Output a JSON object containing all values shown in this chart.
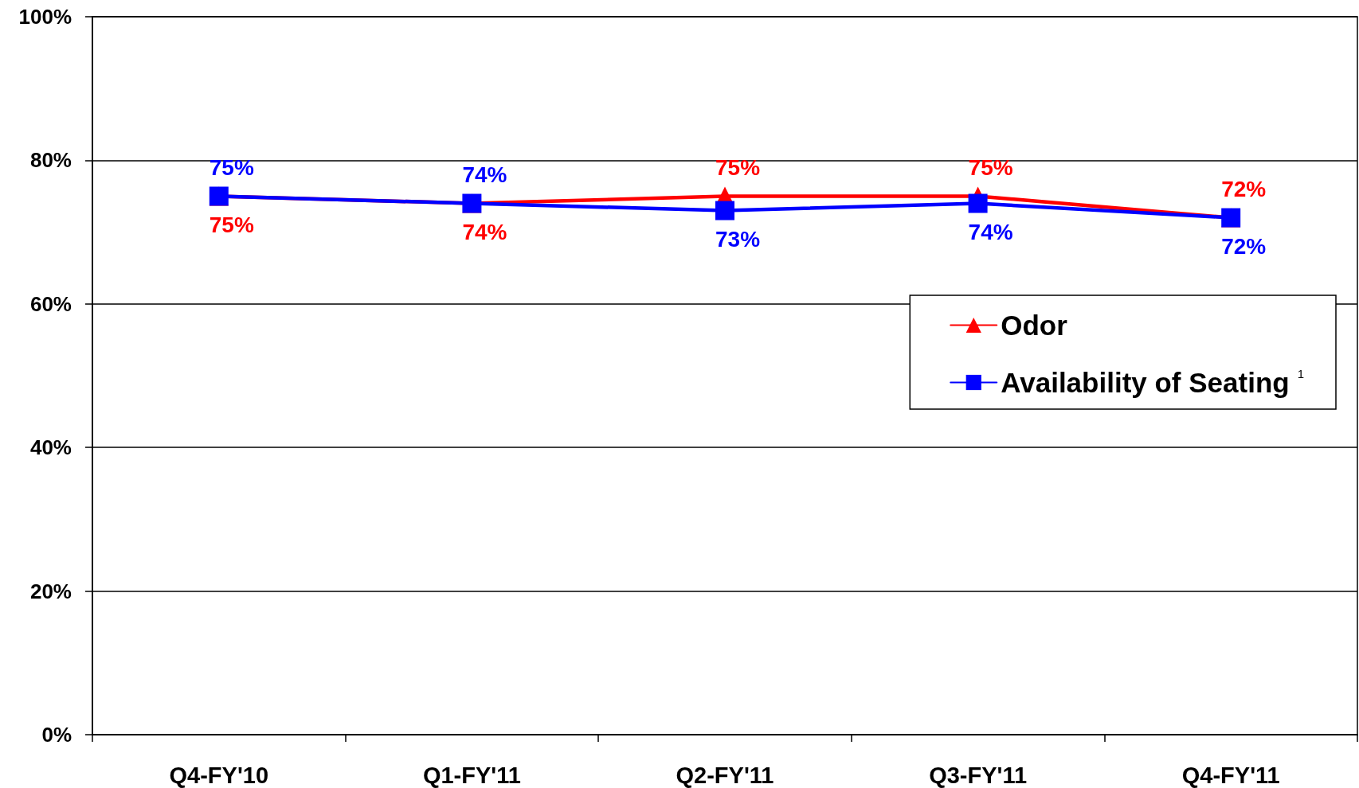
{
  "chart_data": {
    "type": "line",
    "categories": [
      "Q4-FY'10",
      "Q1-FY'11",
      "Q2-FY'11",
      "Q3-FY'11",
      "Q4-FY'11"
    ],
    "series": [
      {
        "name": "Odor",
        "color": "#ff0000",
        "marker": "triangle",
        "values": [
          75,
          74,
          75,
          75,
          72
        ],
        "value_labels": [
          "75%",
          "74%",
          "75%",
          "75%",
          "72%"
        ]
      },
      {
        "name": "Availability of Seating$^{1}$",
        "color": "#0000ff",
        "marker": "square",
        "values": [
          75,
          74,
          73,
          74,
          72
        ],
        "value_labels": [
          "75%",
          "74%",
          "73%",
          "74%",
          "72%"
        ]
      }
    ],
    "ylim": [
      0,
      100
    ],
    "yticks": [
      {
        "value": 0,
        "label": "0%"
      },
      {
        "value": 20,
        "label": "20%"
      },
      {
        "value": 40,
        "label": "40%"
      },
      {
        "value": 60,
        "label": "60%"
      },
      {
        "value": 80,
        "label": "80%"
      },
      {
        "value": 100,
        "label": "100%"
      }
    ],
    "grid": "y",
    "legend": "right",
    "line_style": "solid"
  }
}
